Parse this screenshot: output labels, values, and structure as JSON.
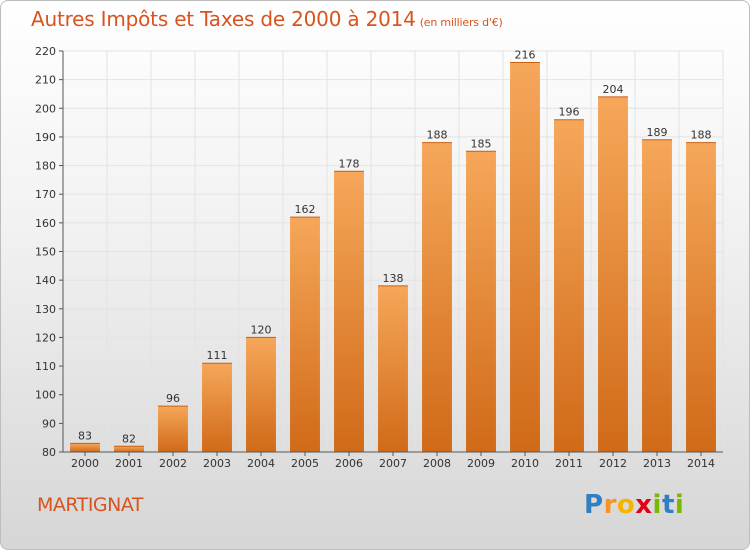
{
  "title": "Autres Impôts et Taxes de 2000 à 2014",
  "subtitle": "(en milliers d'€)",
  "location": "MARTIGNAT",
  "logo": {
    "letters": [
      "P",
      "r",
      "o",
      "x",
      "i",
      "t",
      "i"
    ],
    "colors": [
      "#2f7fc1",
      "#f7931e",
      "#f4b400",
      "#e2001a",
      "#7ab800",
      "#2f7fc1",
      "#7ab800"
    ]
  },
  "colors": {
    "title": "#d9531e",
    "bar_top": "#f6a75a",
    "bar_bottom": "#d06a18",
    "grid": "#e3e3e3",
    "axis": "#555555"
  },
  "chart_data": {
    "type": "bar",
    "categories": [
      "2000",
      "2001",
      "2002",
      "2003",
      "2004",
      "2005",
      "2006",
      "2007",
      "2008",
      "2009",
      "2010",
      "2011",
      "2012",
      "2013",
      "2014"
    ],
    "values": [
      83,
      82,
      96,
      111,
      120,
      162,
      178,
      138,
      188,
      185,
      216,
      196,
      204,
      189,
      188
    ],
    "ylim": [
      80,
      220
    ],
    "yticks": [
      80,
      90,
      100,
      110,
      120,
      130,
      140,
      150,
      160,
      170,
      180,
      190,
      200,
      210,
      220
    ],
    "grid": true,
    "data_labels": true
  }
}
